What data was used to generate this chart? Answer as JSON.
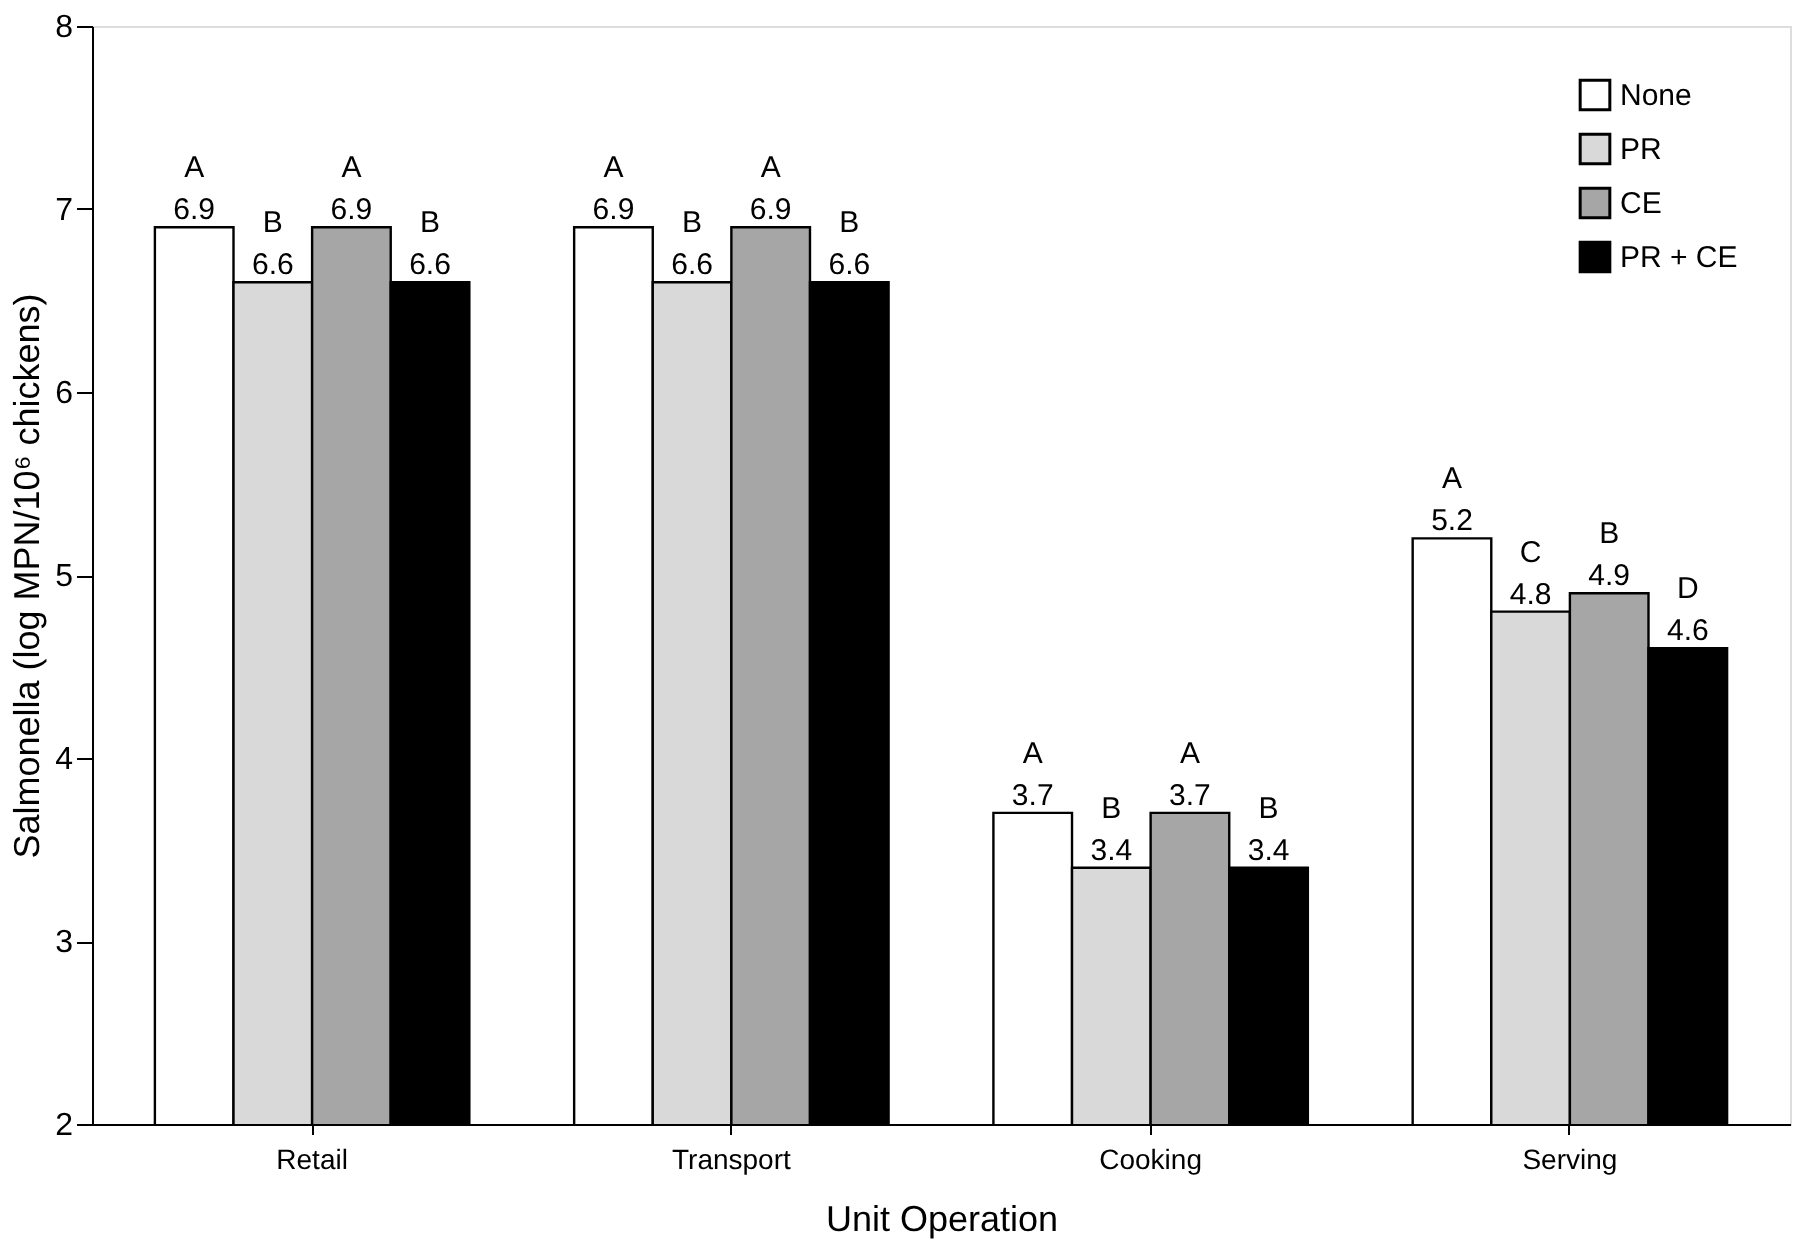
{
  "chart_data": {
    "type": "bar",
    "xlabel": "Unit Operation",
    "ylabel": "Salmonella (log MPN/10⁶ chickens)",
    "categories": [
      "Retail",
      "Transport",
      "Cooking",
      "Serving"
    ],
    "series": [
      {
        "name": "None",
        "color": "#ffffff",
        "values": [
          6.9,
          6.9,
          3.7,
          5.2
        ]
      },
      {
        "name": "PR",
        "color": "#d9d9d9",
        "values": [
          6.6,
          6.6,
          3.4,
          4.8
        ]
      },
      {
        "name": "CE",
        "color": "#a6a6a6",
        "values": [
          6.9,
          6.9,
          3.7,
          4.9
        ]
      },
      {
        "name": "PR + CE",
        "color": "#000000",
        "values": [
          6.6,
          6.6,
          3.4,
          4.6
        ]
      }
    ],
    "ylim": [
      2,
      8
    ],
    "yticks": [
      2,
      3,
      4,
      5,
      6,
      7,
      8
    ],
    "grid": false,
    "legend": "top right",
    "data_labels": true,
    "annotations": [
      "A",
      "A",
      "A",
      "A",
      "B",
      "B",
      "B",
      "C",
      "A",
      "A",
      "A",
      "B",
      "B",
      "B",
      "B",
      "D"
    ]
  }
}
